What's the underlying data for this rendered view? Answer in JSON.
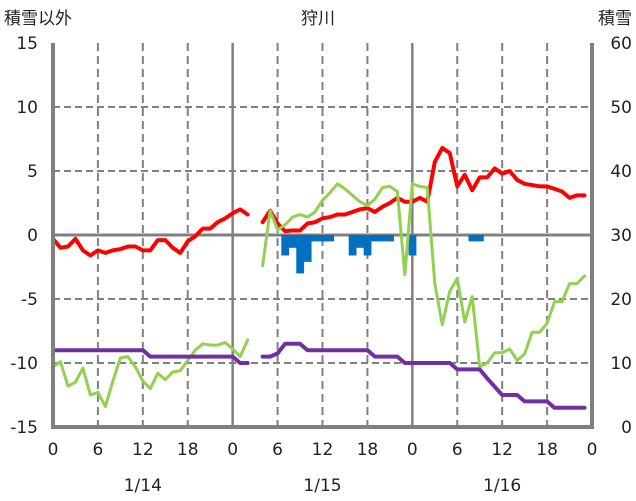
{
  "chart_data": {
    "type": "line",
    "title": "狩川",
    "left_axis_title": "積雪以外",
    "right_axis_title": "積雪",
    "left_ylim": [
      -15,
      15
    ],
    "right_ylim": [
      0,
      60
    ],
    "left_ticks": [
      "15",
      "10",
      "5",
      "0",
      "-5",
      "-10",
      "-15"
    ],
    "right_ticks": [
      "60",
      "50",
      "40",
      "30",
      "20",
      "10",
      "0"
    ],
    "x_ticks": [
      "0",
      "6",
      "12",
      "18",
      "0",
      "6",
      "12",
      "18",
      "0",
      "6",
      "12",
      "18",
      "0"
    ],
    "date_labels": [
      "1/14",
      "1/15",
      "1/16"
    ],
    "x_hours": 72,
    "grid": true,
    "series": [
      {
        "name": "red",
        "axis": "left",
        "color": "#ff0000",
        "values": [
          -0.3,
          -1.0,
          -0.9,
          -0.3,
          -1.2,
          -1.6,
          -1.2,
          -1.4,
          -1.2,
          -1.1,
          -0.9,
          -0.9,
          -1.2,
          -1.2,
          -0.4,
          -0.4,
          -1.0,
          -1.4,
          -0.5,
          -0.1,
          0.5,
          0.5,
          1.0,
          1.3,
          1.7,
          2.0,
          1.6,
          null,
          1.0,
          1.9,
          0.9,
          0.3,
          0.35,
          0.35,
          0.9,
          1.0,
          1.3,
          1.4,
          1.6,
          1.6,
          1.8,
          2.0,
          2.1,
          1.8,
          2.2,
          2.5,
          2.9,
          2.6,
          2.6,
          2.9,
          2.6,
          5.7,
          6.8,
          6.4,
          3.8,
          4.7,
          3.5,
          4.5,
          4.5,
          5.2,
          4.8,
          5.0,
          4.3,
          4.0,
          3.9,
          3.8,
          3.8,
          3.6,
          3.4,
          2.9,
          3.1,
          3.1
        ]
      },
      {
        "name": "green",
        "axis": "left",
        "color": "#92d050",
        "values": [
          -10.3,
          -9.9,
          -11.8,
          -11.5,
          -10.4,
          -12.5,
          -12.3,
          -13.4,
          -11.4,
          -9.6,
          -9.5,
          -10.3,
          -11.4,
          -12.0,
          -10.8,
          -11.3,
          -10.7,
          -10.6,
          -9.8,
          -9.0,
          -8.5,
          -8.6,
          -8.6,
          -8.4,
          -8.9,
          -9.5,
          -8.2,
          null,
          -2.4,
          1.9,
          0.4,
          0.8,
          1.4,
          1.6,
          1.4,
          1.8,
          2.7,
          3.3,
          4.0,
          3.6,
          3.1,
          2.6,
          2.3,
          2.8,
          3.7,
          3.8,
          3.4,
          -3.1,
          4.0,
          3.8,
          3.7,
          -3.8,
          -7.0,
          -4.4,
          -3.4,
          -6.8,
          -4.8,
          -10.3,
          -10.0,
          -9.2,
          -9.2,
          -8.9,
          -9.8,
          -9.3,
          -7.6,
          -7.6,
          -6.9,
          -5.2,
          -5.2,
          -3.8,
          -3.8,
          -3.2
        ]
      },
      {
        "name": "purple",
        "axis": "right",
        "color": "#7030a0",
        "values": [
          12,
          12,
          12,
          12,
          12,
          12,
          12,
          12,
          12,
          12,
          12,
          12,
          12,
          11,
          11,
          11,
          11,
          11,
          11,
          11,
          11,
          11,
          11,
          11,
          11,
          10,
          10,
          null,
          11,
          11,
          11.5,
          13,
          13,
          13,
          12,
          12,
          12,
          12,
          12,
          12,
          12,
          12,
          12,
          11,
          11,
          11,
          11,
          10,
          10,
          10,
          10,
          10,
          10,
          10,
          9,
          9,
          9,
          9,
          7.6,
          6.3,
          5,
          5,
          5,
          4,
          4,
          4,
          4,
          3,
          3,
          3,
          3,
          3
        ]
      },
      {
        "name": "blue",
        "type": "bar",
        "axis": "left",
        "color": "#0070c0",
        "hours": [
          31,
          32,
          33,
          34,
          35,
          36,
          37,
          40,
          41,
          42,
          43,
          44,
          45,
          48,
          56,
          57
        ],
        "values": [
          -1.6,
          -1.0,
          -3.0,
          -2.1,
          -0.5,
          -0.5,
          -0.5,
          -1.6,
          -1.0,
          -1.6,
          -0.5,
          -0.5,
          -0.5,
          -1.6,
          -0.5,
          -0.5
        ]
      }
    ]
  }
}
